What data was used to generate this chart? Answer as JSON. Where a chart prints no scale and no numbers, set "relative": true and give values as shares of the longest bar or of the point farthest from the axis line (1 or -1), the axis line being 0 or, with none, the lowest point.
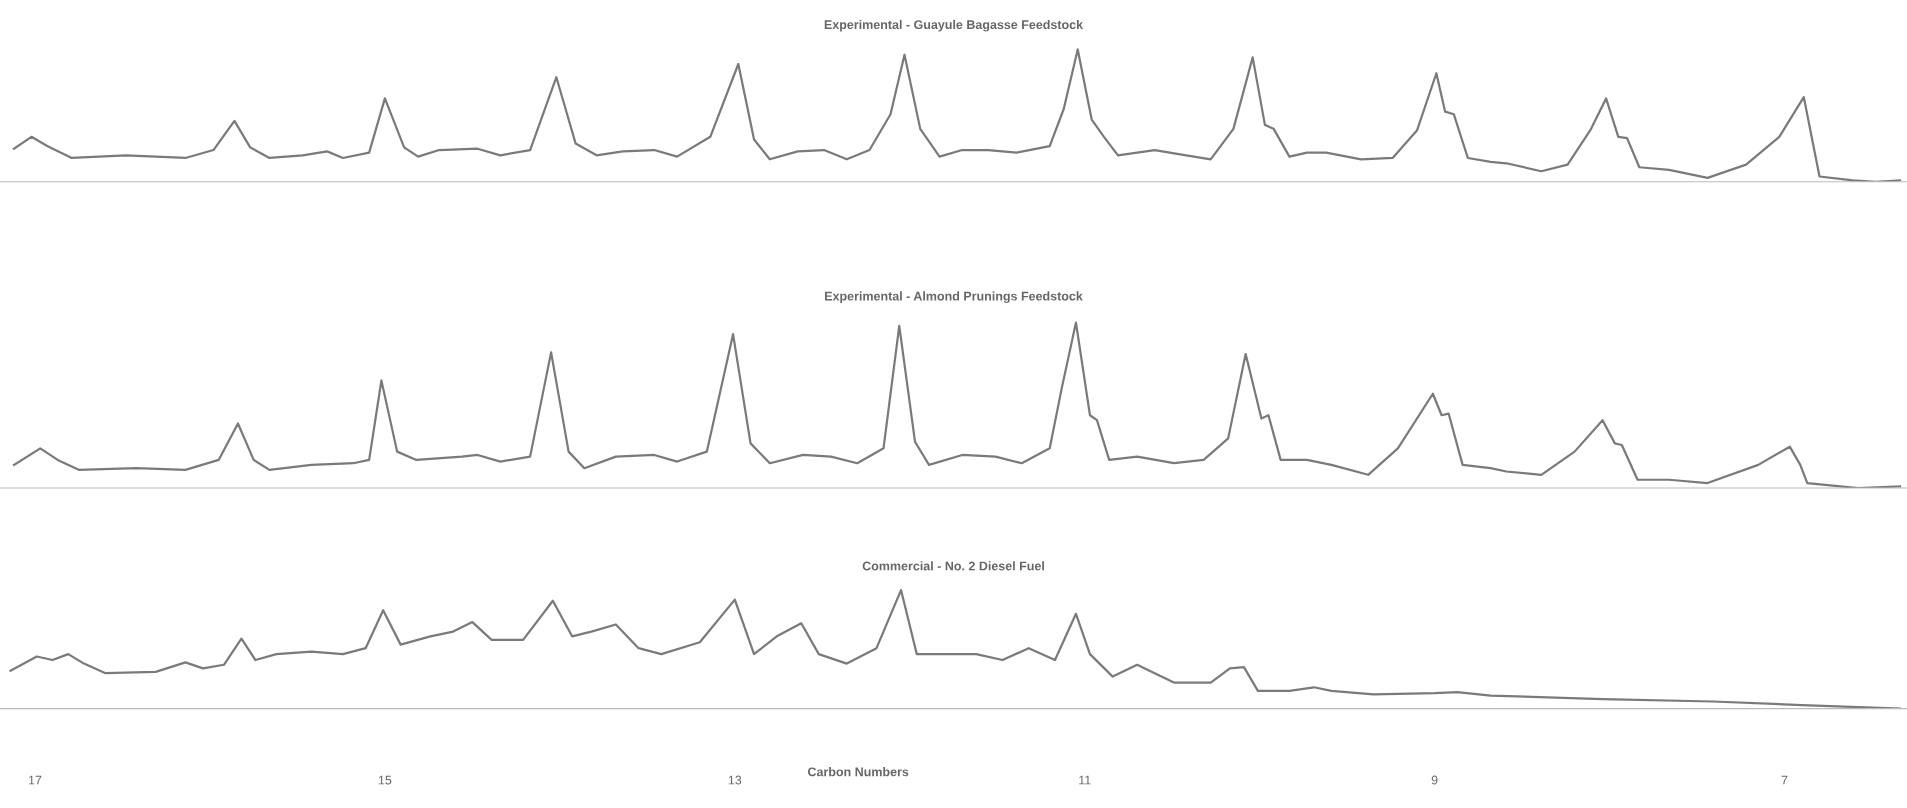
{
  "chart_data": [
    {
      "type": "line",
      "title": "Experimental - Guayule Bagasse Feedstock",
      "relative": true,
      "grid": false,
      "tick_labels": false,
      "line_style": "solid",
      "xlim": [
        17.2,
        6.3
      ],
      "xticks": [
        17,
        15,
        13,
        11,
        9,
        7
      ],
      "x": [
        17.12,
        17.02,
        16.93,
        16.79,
        16.48,
        16.14,
        15.98,
        15.86,
        15.77,
        15.66,
        15.47,
        15.33,
        15.24,
        15.09,
        15.0,
        14.89,
        14.81,
        14.69,
        14.47,
        14.34,
        14.17,
        14.02,
        13.91,
        13.79,
        13.64,
        13.46,
        13.33,
        13.14,
        12.98,
        12.89,
        12.8,
        12.64,
        12.49,
        12.36,
        12.23,
        12.11,
        12.03,
        11.94,
        11.83,
        11.7,
        11.55,
        11.39,
        11.2,
        11.12,
        11.04,
        10.96,
        10.89,
        10.81,
        10.7,
        10.6,
        10.42,
        10.28,
        10.15,
        10.04,
        9.97,
        9.92,
        9.83,
        9.73,
        9.62,
        9.42,
        9.24,
        9.1,
        8.99,
        8.94,
        8.89,
        8.81,
        8.68,
        8.59,
        8.39,
        8.24,
        8.11,
        8.02,
        7.95,
        7.9,
        7.83,
        7.66,
        7.44,
        7.22,
        7.03,
        6.89,
        6.8,
        6.61,
        6.48,
        6.34
      ],
      "series": [
        {
          "color": "#7a7a7a",
          "values": [
            0.25,
            0.34,
            0.27,
            0.18,
            0.2,
            0.18,
            0.24,
            0.46,
            0.26,
            0.18,
            0.2,
            0.23,
            0.18,
            0.22,
            0.63,
            0.26,
            0.19,
            0.24,
            0.25,
            0.2,
            0.24,
            0.79,
            0.29,
            0.2,
            0.23,
            0.24,
            0.19,
            0.34,
            0.89,
            0.32,
            0.17,
            0.23,
            0.24,
            0.17,
            0.24,
            0.51,
            0.96,
            0.4,
            0.19,
            0.24,
            0.24,
            0.22,
            0.27,
            0.55,
            1.0,
            0.47,
            0.34,
            0.2,
            0.22,
            0.24,
            0.2,
            0.17,
            0.4,
            0.94,
            0.43,
            0.4,
            0.19,
            0.22,
            0.22,
            0.17,
            0.18,
            0.39,
            0.82,
            0.53,
            0.51,
            0.18,
            0.15,
            0.14,
            0.08,
            0.13,
            0.39,
            0.63,
            0.34,
            0.33,
            0.11,
            0.09,
            0.03,
            0.13,
            0.34,
            0.64,
            0.04,
            0.01,
            0,
            0.01
          ]
        }
      ]
    },
    {
      "type": "line",
      "title": "Experimental - Almond Prunings Feedstock",
      "relative": true,
      "grid": false,
      "tick_labels": false,
      "line_style": "solid",
      "xlim": [
        17.2,
        6.3
      ],
      "xticks": [
        17,
        15,
        13,
        11,
        9,
        7
      ],
      "x": [
        17.12,
        16.97,
        16.87,
        16.75,
        16.42,
        16.14,
        15.95,
        15.84,
        15.75,
        15.66,
        15.42,
        15.18,
        15.09,
        15.02,
        14.93,
        14.82,
        14.56,
        14.47,
        14.34,
        14.17,
        14.05,
        13.95,
        13.86,
        13.68,
        13.46,
        13.33,
        13.16,
        13.01,
        12.91,
        12.8,
        12.61,
        12.45,
        12.3,
        12.15,
        12.06,
        11.97,
        11.89,
        11.7,
        11.51,
        11.36,
        11.2,
        11.13,
        11.05,
        10.97,
        10.93,
        10.86,
        10.7,
        10.49,
        10.32,
        10.18,
        10.08,
        9.99,
        9.95,
        9.88,
        9.73,
        9.59,
        9.38,
        9.21,
        9.01,
        8.96,
        8.92,
        8.84,
        8.68,
        8.59,
        8.39,
        8.2,
        8.04,
        7.97,
        7.93,
        7.84,
        7.66,
        7.44,
        7.15,
        6.97,
        6.91,
        6.87,
        6.68,
        6.58,
        6.34
      ],
      "series": [
        {
          "color": "#7a7a7a",
          "values": [
            0.14,
            0.24,
            0.17,
            0.11,
            0.12,
            0.11,
            0.17,
            0.39,
            0.17,
            0.11,
            0.14,
            0.15,
            0.17,
            0.65,
            0.22,
            0.17,
            0.19,
            0.2,
            0.16,
            0.19,
            0.82,
            0.22,
            0.12,
            0.19,
            0.2,
            0.16,
            0.22,
            0.93,
            0.27,
            0.15,
            0.2,
            0.19,
            0.15,
            0.24,
            0.98,
            0.28,
            0.14,
            0.2,
            0.19,
            0.15,
            0.24,
            0.61,
            1.0,
            0.44,
            0.41,
            0.17,
            0.19,
            0.15,
            0.17,
            0.3,
            0.81,
            0.42,
            0.44,
            0.17,
            0.17,
            0.14,
            0.08,
            0.24,
            0.57,
            0.44,
            0.45,
            0.14,
            0.12,
            0.1,
            0.08,
            0.22,
            0.41,
            0.27,
            0.26,
            0.05,
            0.05,
            0.03,
            0.14,
            0.25,
            0.14,
            0.03,
            0.01,
            0,
            0.01
          ]
        }
      ]
    },
    {
      "type": "line",
      "title": "Commercial - No. 2 Diesel Fuel",
      "xlabel": "Carbon Numbers",
      "relative": true,
      "grid": false,
      "tick_labels": "x",
      "line_style": "solid",
      "xlim": [
        17.2,
        6.3
      ],
      "xticks": [
        17,
        15,
        13,
        11,
        9,
        7
      ],
      "x": [
        17.14,
        16.99,
        16.9,
        16.81,
        16.72,
        16.6,
        16.31,
        16.14,
        16.04,
        15.92,
        15.82,
        15.74,
        15.62,
        15.42,
        15.24,
        15.11,
        15.01,
        14.91,
        14.74,
        14.61,
        14.5,
        14.39,
        14.21,
        14.04,
        13.93,
        13.82,
        13.68,
        13.55,
        13.42,
        13.2,
        13.0,
        12.89,
        12.76,
        12.62,
        12.52,
        12.36,
        12.19,
        12.05,
        11.96,
        11.77,
        11.62,
        11.47,
        11.32,
        11.17,
        11.05,
        10.97,
        10.84,
        10.7,
        10.63,
        10.49,
        10.28,
        10.17,
        10.09,
        10.01,
        9.83,
        9.69,
        9.59,
        9.35,
        9.0,
        8.87,
        8.68,
        8.04,
        7.41,
        6.9,
        6.34
      ],
      "series": [
        {
          "color": "#7a7a7a",
          "values": [
            0.32,
            0.44,
            0.41,
            0.46,
            0.38,
            0.3,
            0.31,
            0.39,
            0.34,
            0.37,
            0.59,
            0.41,
            0.46,
            0.48,
            0.46,
            0.51,
            0.83,
            0.54,
            0.61,
            0.65,
            0.73,
            0.58,
            0.58,
            0.91,
            0.61,
            0.65,
            0.71,
            0.51,
            0.46,
            0.56,
            0.92,
            0.46,
            0.61,
            0.72,
            0.46,
            0.38,
            0.51,
            1.0,
            0.46,
            0.46,
            0.46,
            0.41,
            0.51,
            0.41,
            0.8,
            0.46,
            0.27,
            0.37,
            0.32,
            0.22,
            0.22,
            0.34,
            0.35,
            0.15,
            0.15,
            0.18,
            0.15,
            0.12,
            0.13,
            0.14,
            0.11,
            0.08,
            0.06,
            0.03,
            0
          ]
        }
      ]
    }
  ]
}
